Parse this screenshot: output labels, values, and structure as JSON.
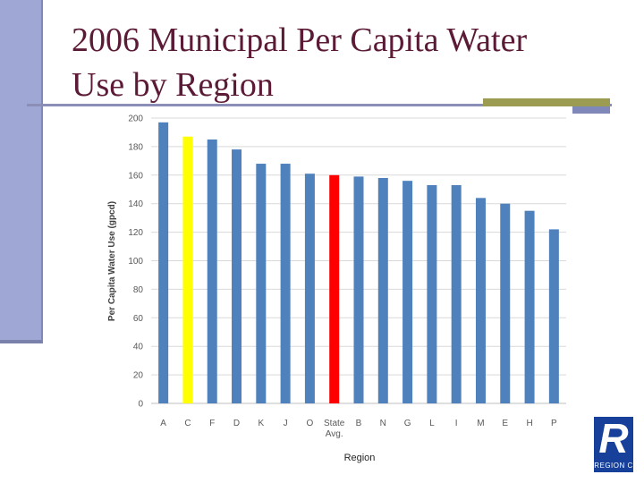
{
  "slide": {
    "title_line1": "2006 Municipal Per Capita Water",
    "title_line2": "Use by Region",
    "logo_letter": "R",
    "logo_text": "REGION C"
  },
  "colors": {
    "default_bar": "#4f81bd",
    "highlight_C": "#ffff00",
    "highlight_state": "#ff0000",
    "grid": "#d9d9d9",
    "axis_text": "#595959"
  },
  "chart_data": {
    "type": "bar",
    "title": "",
    "xlabel": "Region",
    "ylabel": "Per Capita Water Use (gpcd)",
    "ylim": [
      0,
      200
    ],
    "yticks": [
      0,
      20,
      40,
      60,
      80,
      100,
      120,
      140,
      160,
      180,
      200
    ],
    "grid": true,
    "legend": "none",
    "categories": [
      "A",
      "C",
      "F",
      "D",
      "K",
      "J",
      "O",
      "State Avg.",
      "B",
      "N",
      "G",
      "L",
      "I",
      "M",
      "E",
      "H",
      "P"
    ],
    "values": [
      197,
      187,
      185,
      178,
      168,
      168,
      161,
      160,
      159,
      158,
      156,
      153,
      153,
      144,
      140,
      135,
      122
    ],
    "bar_colors": [
      "#4f81bd",
      "#ffff00",
      "#4f81bd",
      "#4f81bd",
      "#4f81bd",
      "#4f81bd",
      "#4f81bd",
      "#ff0000",
      "#4f81bd",
      "#4f81bd",
      "#4f81bd",
      "#4f81bd",
      "#4f81bd",
      "#4f81bd",
      "#4f81bd",
      "#4f81bd",
      "#4f81bd"
    ]
  }
}
